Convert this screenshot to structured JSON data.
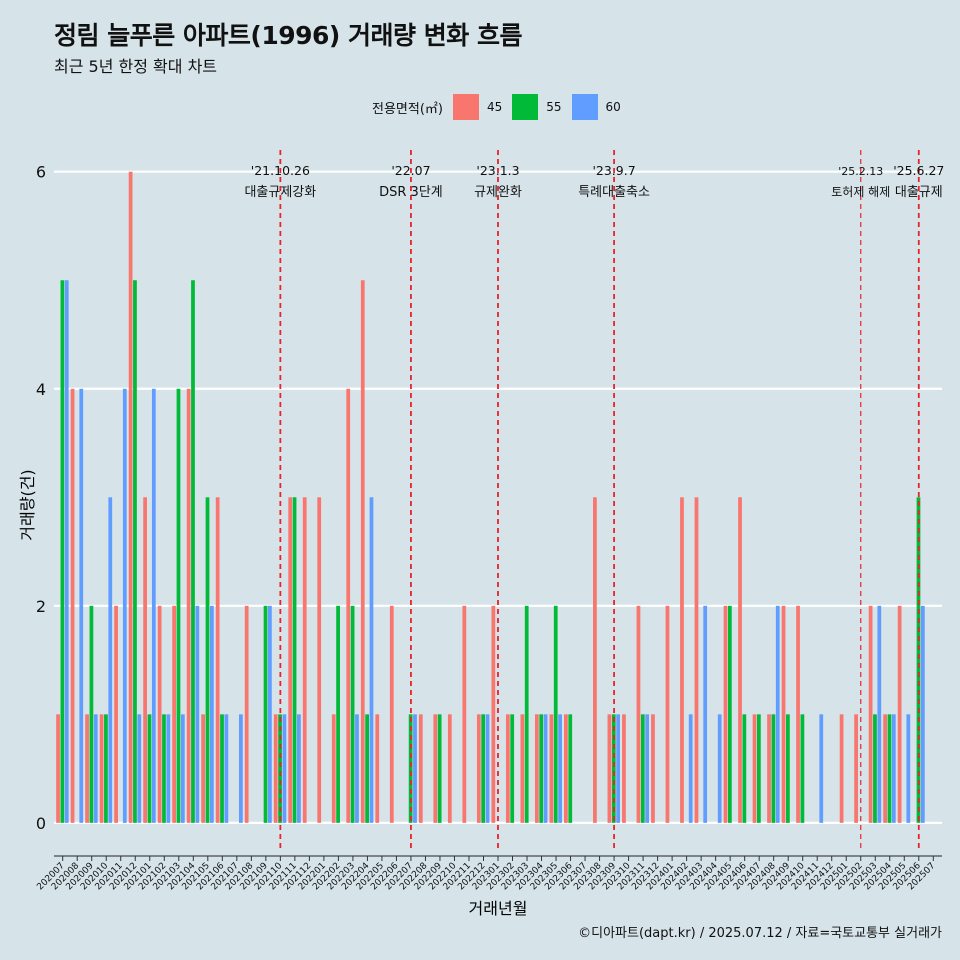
{
  "title": "정림 늘푸른 아파트(1996) 거래량 변화 흐름",
  "subtitle": "최근 5년 한정 확대 차트",
  "caption": "©디아파트(dapt.kr) / 2025.07.12 / 자료=국토교통부 실거래가",
  "colors": {
    "45": "#f8766d",
    "55": "#00ba38",
    "60": "#619cff",
    "vline": "#e8232a",
    "grid": "#ffffff",
    "background": "#d6e4ea"
  },
  "chart_data": {
    "type": "bar",
    "xlabel": "거래년월",
    "ylabel": "거래량(건)",
    "ylim": [
      -0.25,
      6.2
    ],
    "yticks": [
      0,
      2,
      4,
      6
    ],
    "legend": {
      "title": "전용면적(㎡)",
      "position": "top"
    },
    "categories": [
      "202007",
      "202008",
      "202009",
      "202010",
      "202011",
      "202012",
      "202101",
      "202102",
      "202103",
      "202104",
      "202105",
      "202106",
      "202107",
      "202108",
      "202109",
      "202110",
      "202111",
      "202112",
      "202201",
      "202202",
      "202203",
      "202204",
      "202205",
      "202206",
      "202207",
      "202208",
      "202209",
      "202210",
      "202211",
      "202212",
      "202301",
      "202302",
      "202303",
      "202304",
      "202305",
      "202306",
      "202307",
      "202308",
      "202309",
      "202310",
      "202311",
      "202312",
      "202401",
      "202402",
      "202403",
      "202404",
      "202405",
      "202406",
      "202407",
      "202408",
      "202409",
      "202410",
      "202411",
      "202412",
      "202501",
      "202502",
      "202503",
      "202504",
      "202505",
      "202506",
      "202507"
    ],
    "series": [
      {
        "name": "45",
        "values": [
          1,
          4,
          1,
          1,
          2,
          6,
          3,
          2,
          2,
          4,
          1,
          3,
          0,
          2,
          0,
          1,
          3,
          3,
          3,
          1,
          4,
          5,
          1,
          2,
          0,
          1,
          1,
          1,
          2,
          1,
          2,
          1,
          1,
          1,
          1,
          1,
          0,
          3,
          1,
          1,
          2,
          1,
          2,
          3,
          3,
          0,
          2,
          3,
          1,
          1,
          2,
          2,
          0,
          0,
          1,
          1,
          2,
          1,
          2,
          0,
          0
        ]
      },
      {
        "name": "55",
        "values": [
          5,
          0,
          2,
          1,
          0,
          5,
          1,
          1,
          4,
          5,
          3,
          1,
          0,
          0,
          2,
          1,
          3,
          0,
          0,
          2,
          2,
          1,
          0,
          0,
          1,
          0,
          1,
          0,
          0,
          1,
          0,
          1,
          2,
          1,
          2,
          1,
          0,
          0,
          1,
          0,
          1,
          0,
          0,
          0,
          0,
          0,
          2,
          1,
          1,
          1,
          1,
          1,
          0,
          0,
          0,
          0,
          1,
          1,
          0,
          3,
          0
        ]
      },
      {
        "name": "60",
        "values": [
          5,
          4,
          1,
          3,
          4,
          1,
          4,
          1,
          1,
          2,
          2,
          1,
          1,
          0,
          2,
          1,
          1,
          0,
          0,
          0,
          1,
          3,
          0,
          0,
          1,
          0,
          0,
          0,
          0,
          1,
          0,
          0,
          0,
          1,
          1,
          0,
          0,
          0,
          1,
          0,
          1,
          0,
          0,
          1,
          2,
          1,
          0,
          0,
          0,
          2,
          0,
          0,
          1,
          0,
          0,
          0,
          2,
          1,
          1,
          2,
          0
        ]
      }
    ],
    "events": [
      {
        "date": "'21.10.26",
        "label": "대출규제강화",
        "at": "202110",
        "style": "solid"
      },
      {
        "date": "'22.07",
        "label": "DSR 3단계",
        "at": "202207",
        "style": "solid"
      },
      {
        "date": "'23.1.3",
        "label": "규제완화",
        "at": "202301",
        "style": "solid"
      },
      {
        "date": "'23.9.7",
        "label": "특례대출축소",
        "at": "202309",
        "style": "solid"
      },
      {
        "date": "'25.2.13",
        "label": "토허제 해제",
        "at": "202502",
        "style": "thin"
      },
      {
        "date": "'25.6.27",
        "label": "대출규제",
        "at": "202506",
        "style": "solid"
      }
    ]
  }
}
